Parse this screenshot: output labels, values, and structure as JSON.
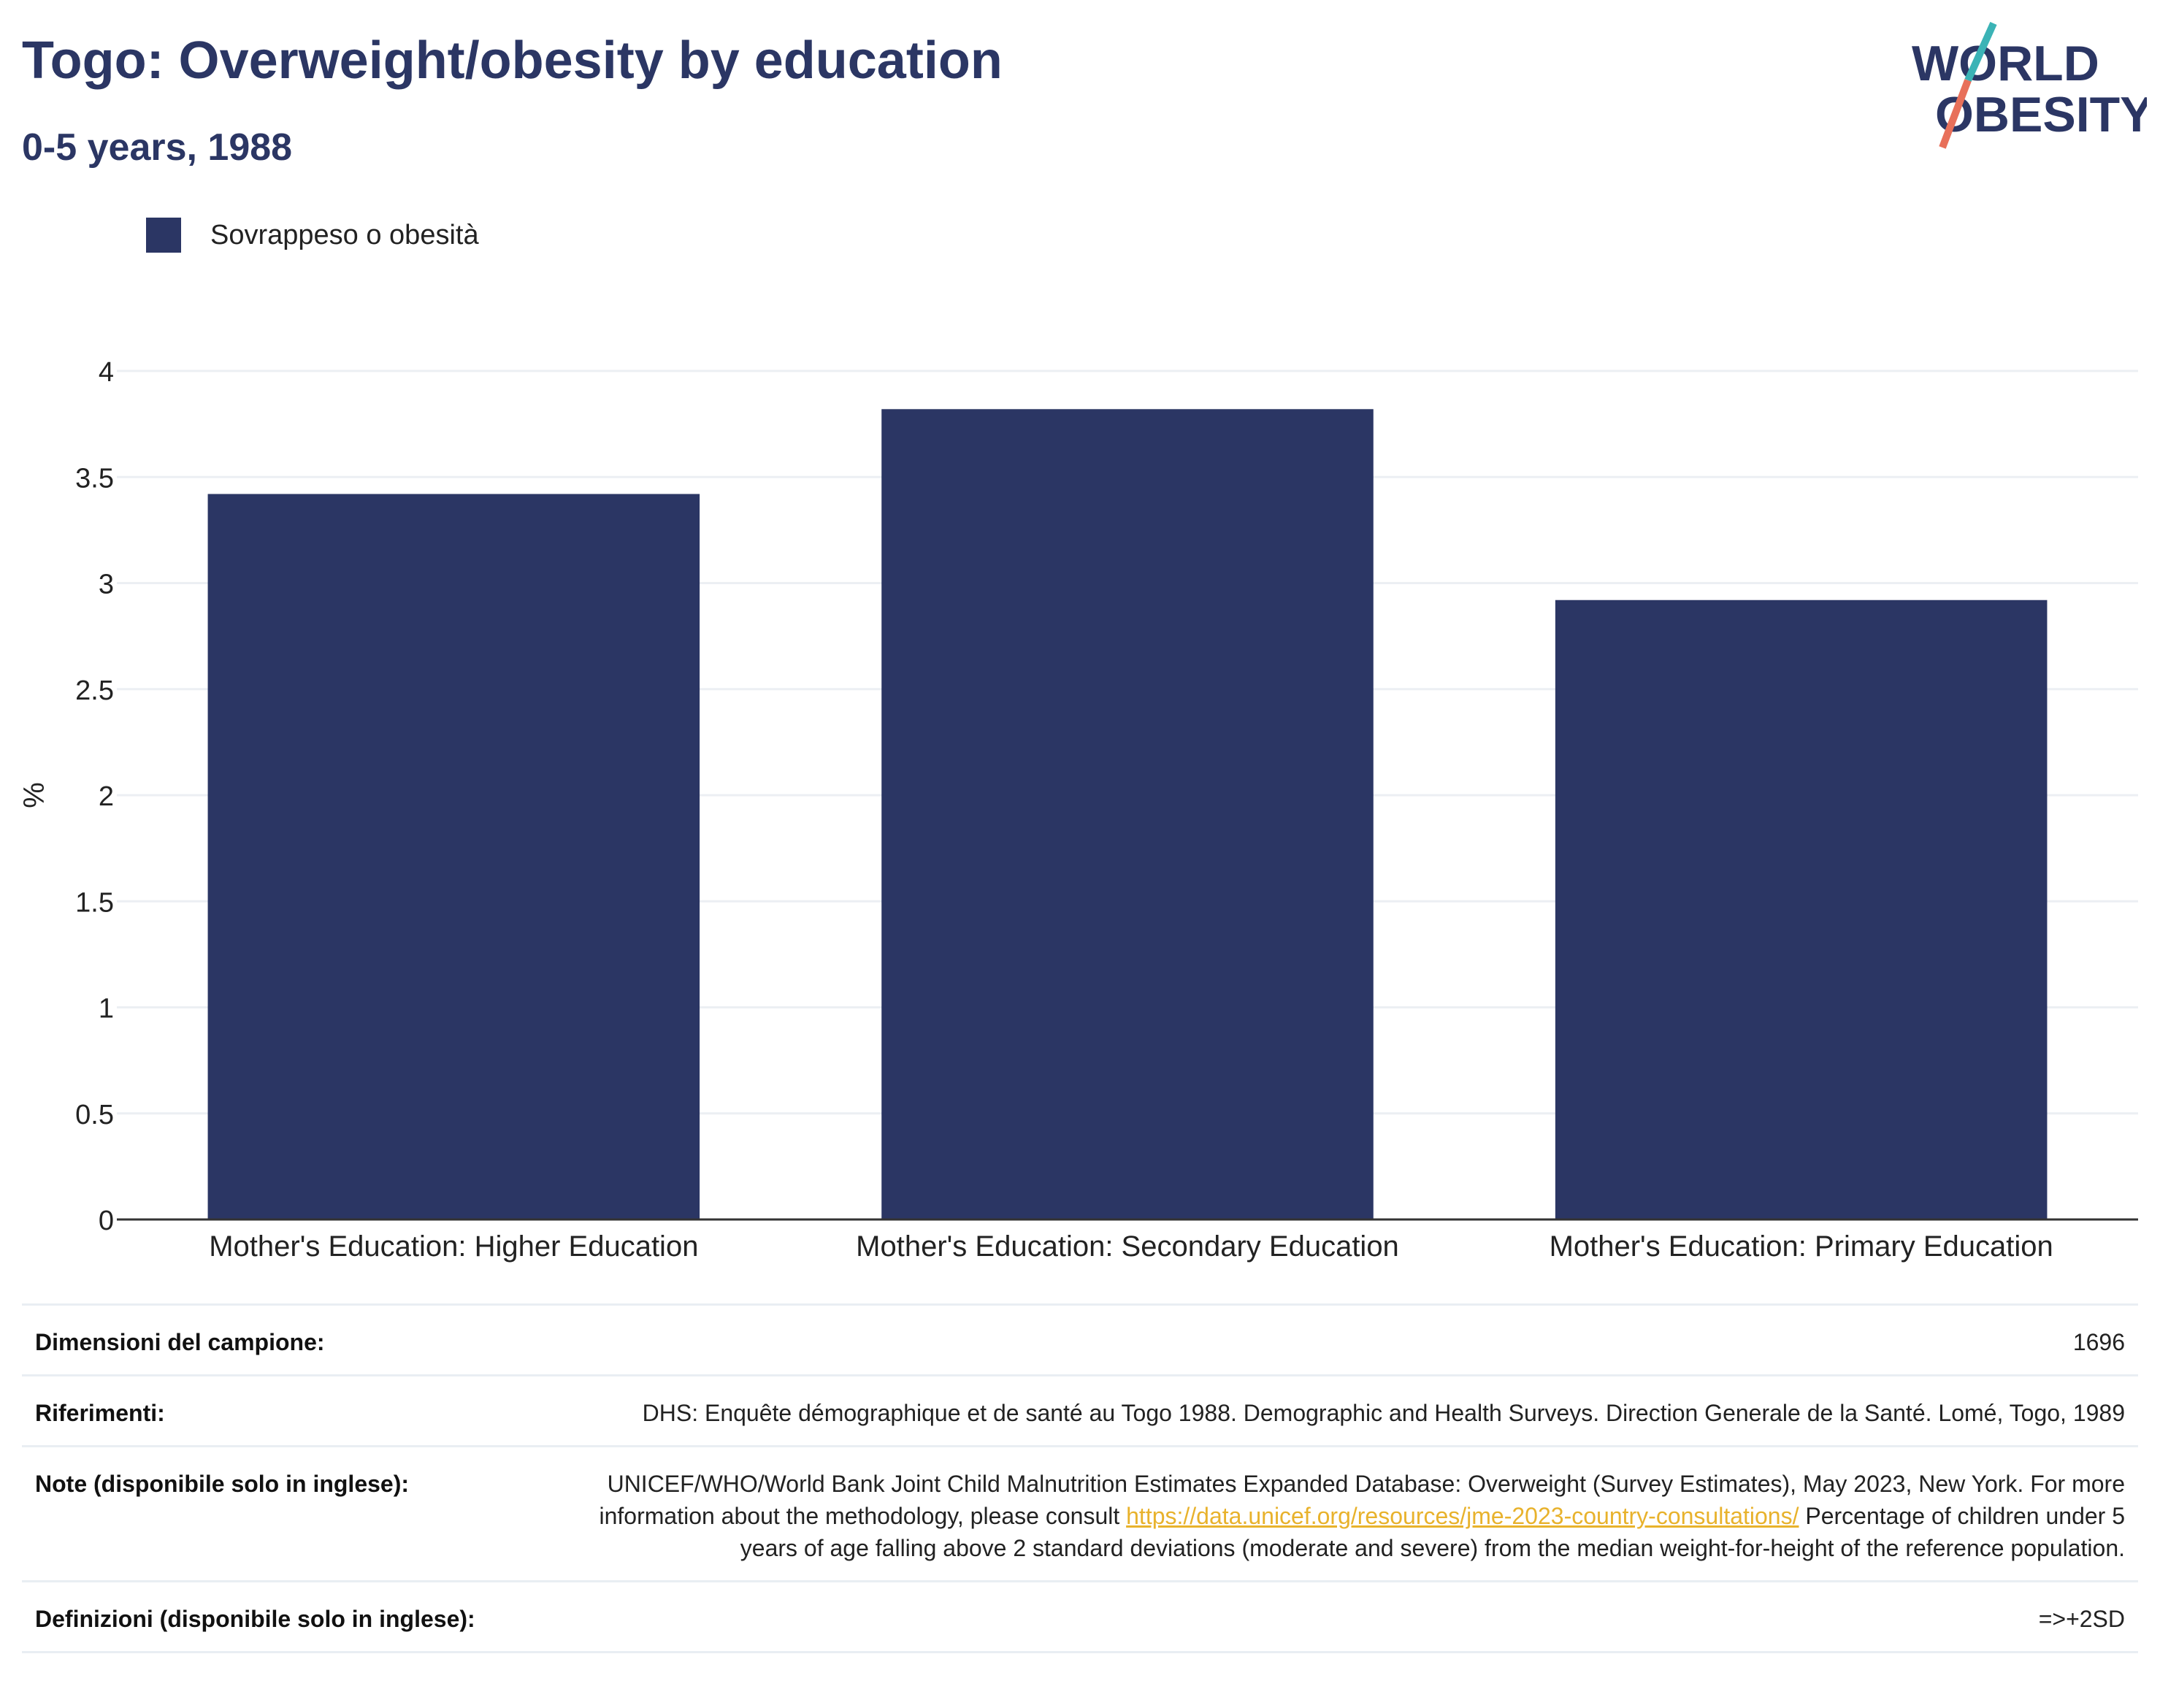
{
  "header": {
    "title": "Togo: Overweight/obesity by education",
    "subtitle": "0-5 years, 1988"
  },
  "logo": {
    "line1": "WORLD",
    "line2": "OBESITY",
    "colors": {
      "text": "#2b3664",
      "slash_teal": "#3bb3b6",
      "slash_coral": "#e8705a"
    }
  },
  "legend": {
    "label": "Sovrappeso o obesità",
    "color": "#2b3664"
  },
  "chart_data": {
    "type": "bar",
    "categories": [
      "Mother's Education: Higher Education",
      "Mother's Education: Secondary Education",
      "Mother's Education: Primary Education"
    ],
    "series": [
      {
        "name": "Sovrappeso o obesità",
        "values": [
          3.42,
          3.82,
          2.92
        ],
        "color": "#2b3664"
      }
    ],
    "ylabel": "%",
    "ylim": [
      0,
      4
    ],
    "yticks": [
      0,
      0.5,
      1,
      1.5,
      2,
      2.5,
      3,
      3.5,
      4
    ],
    "ytick_labels": [
      "0",
      "0.5",
      "1",
      "1.5",
      "2",
      "2.5",
      "3",
      "3.5",
      "4"
    ],
    "grid": true
  },
  "info": {
    "sample_label": "Dimensioni del campione:",
    "sample_value": "1696",
    "refs_label": "Riferimenti:",
    "refs_value": "DHS: Enquête démographique et de santé au Togo 1988. Demographic and Health Surveys. Direction Generale de la Santé. Lomé, Togo, 1989",
    "notes_label": "Note (disponibile solo in inglese):",
    "notes_pre": "UNICEF/WHO/World Bank Joint Child Malnutrition Estimates Expanded Database: Overweight (Survey Estimates), May 2023, New York. For more information about the methodology, please consult ",
    "notes_link": "https://data.unicef.org/resources/jme-2023-country-consultations/",
    "notes_post": " Percentage of children under 5 years of age falling above 2 standard deviations (moderate and severe) from the median weight-for-height of the reference population.",
    "defs_label": "Definizioni (disponibile solo in inglese):",
    "defs_value": "=>+2SD"
  }
}
